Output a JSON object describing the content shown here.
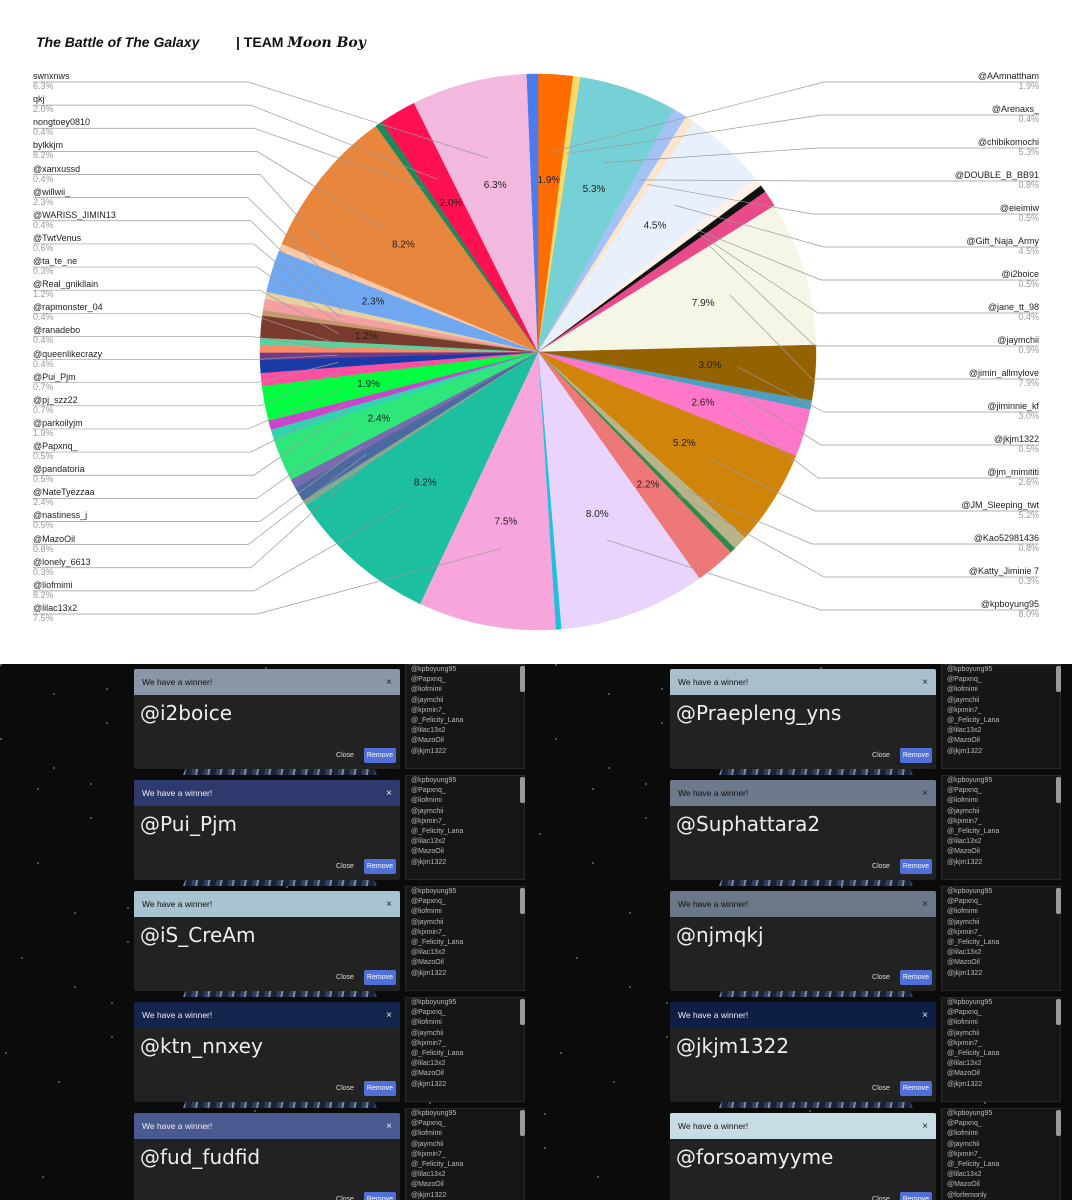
{
  "header": {
    "title": "The Battle of The Galaxy",
    "team_prefix": "| TEAM",
    "team_name": "Moon Boy"
  },
  "chart_data": {
    "type": "pie",
    "title": "",
    "slices": [
      {
        "label": "@AAmnattham",
        "value": 1.9,
        "color": "#ff6d01",
        "side": "right"
      },
      {
        "label": "@Arenaxs_",
        "value": 0.4,
        "color": "#ffd966",
        "side": "right"
      },
      {
        "label": "@chibikomochi",
        "value": 5.3,
        "color": "#76d1d6",
        "side": "right"
      },
      {
        "label": "@DOUBLE_B_BB91",
        "value": 0.8,
        "color": "#a4c2f4",
        "side": "right"
      },
      {
        "label": "@eieimiw",
        "value": 0.5,
        "color": "#fce5cd",
        "side": "right"
      },
      {
        "label": "@Gift_Naja_Army",
        "value": 4.5,
        "color": "#e8f0fe",
        "side": "right"
      },
      {
        "label": "@i2boice",
        "value": 0.5,
        "color": "#fff0e8",
        "side": "right"
      },
      {
        "label": "@jane_tt_98",
        "value": 0.4,
        "color": "#111111",
        "side": "right"
      },
      {
        "label": "@jaymchii",
        "value": 0.9,
        "color": "#e94b8a",
        "side": "right"
      },
      {
        "label": "@jimin_allmylove",
        "value": 7.9,
        "color": "#f6f6e6",
        "side": "right"
      },
      {
        "label": "@jiminnie_kf",
        "value": 3.0,
        "color": "#946200",
        "side": "right"
      },
      {
        "label": "@jkjm1322",
        "value": 0.5,
        "color": "#4c9fbf",
        "side": "right"
      },
      {
        "label": "@jm_mimititi",
        "value": 2.6,
        "color": "#ff77c8",
        "side": "right"
      },
      {
        "label": "@JM_Sleeping_twt",
        "value": 5.2,
        "color": "#d0850a",
        "side": "right"
      },
      {
        "label": "@Kao52981436",
        "value": 0.8,
        "color": "#b9b38a",
        "side": "right"
      },
      {
        "label": "@Katty_Jiminie 7",
        "value": 0.3,
        "color": "#2f8a4a",
        "side": "right"
      },
      {
        "label": "",
        "value": 2.2,
        "color": "#ee7777",
        "side": "none"
      },
      {
        "label": "@kpboyung95",
        "value": 8.0,
        "color": "#e8d4fc",
        "side": "right"
      },
      {
        "label": "",
        "value": 0.3,
        "color": "#22c0e0",
        "side": "none"
      },
      {
        "label": "@lilac13x2",
        "value": 7.5,
        "color": "#f7a6dd",
        "side": "left"
      },
      {
        "label": "@liofmimi",
        "value": 8.2,
        "color": "#1cbfa0",
        "side": "left"
      },
      {
        "label": "@lonely_6613",
        "value": 0.3,
        "color": "#86a890",
        "side": "left"
      },
      {
        "label": "@MazoOil",
        "value": 0.8,
        "color": "#4a6aa0",
        "side": "left"
      },
      {
        "label": "@nastiness_j",
        "value": 0.5,
        "color": "#7c6ab0",
        "side": "left"
      },
      {
        "label": "@NateTyezzaa",
        "value": 2.4,
        "color": "#2fe67a",
        "side": "left"
      },
      {
        "label": "@pandatoria",
        "value": 0.5,
        "color": "#2fd4b0",
        "side": "left"
      },
      {
        "label": "@Papxnq_",
        "value": 0.5,
        "color": "#cc44cc",
        "side": "left"
      },
      {
        "label": "@parkoilyjm",
        "value": 1.9,
        "color": "#00ff40",
        "side": "left"
      },
      {
        "label": "@pj_szz22",
        "value": 0.7,
        "color": "#ff4fa0",
        "side": "left"
      },
      {
        "label": "@Pui_Pjm",
        "value": 0.7,
        "color": "#1a3aa8",
        "side": "left"
      },
      {
        "label": "@queenlikecrazy",
        "value": 0.4,
        "color": "#6f3c8c",
        "side": "left"
      },
      {
        "label": "@ranadebo",
        "value": 0.4,
        "color": "#ff8a65",
        "side": "left"
      },
      {
        "label": "@rapmonster_04",
        "value": 0.4,
        "color": "#5bd1a0",
        "side": "left"
      },
      {
        "label": "@Real_gnikllain",
        "value": 1.2,
        "color": "#7a3b2e",
        "side": "left"
      },
      {
        "label": "@ta_te_ne",
        "value": 0.3,
        "color": "#c49a6c",
        "side": "left"
      },
      {
        "label": "@TwtVenus",
        "value": 0.6,
        "color": "#f4a0a0",
        "side": "left"
      },
      {
        "label": "@WARISS_JIMIN13",
        "value": 0.4,
        "color": "#e6cfa0",
        "side": "left"
      },
      {
        "label": "@willwii_",
        "value": 2.3,
        "color": "#6fa8f0",
        "side": "left"
      },
      {
        "label": "@xanxussd",
        "value": 0.4,
        "color": "#f9c9a9",
        "side": "left"
      },
      {
        "label": "bylkkjm",
        "value": 8.2,
        "color": "#e8863e",
        "side": "left"
      },
      {
        "label": "nongtoey0810",
        "value": 0.4,
        "color": "#1c8a5a",
        "side": "left"
      },
      {
        "label": "qkj",
        "value": 2.0,
        "color": "#ff1050",
        "side": "left"
      },
      {
        "label": "swnxnws",
        "value": 6.3,
        "color": "#f2b8de",
        "side": "left"
      },
      {
        "label": "",
        "value": 0.6,
        "color": "#4a7cf0",
        "side": "none"
      }
    ],
    "left_labels": [
      {
        "name": "swnxnws",
        "pct": "6.3%"
      },
      {
        "name": "qkj",
        "pct": "2.0%"
      },
      {
        "name": "nongtoey0810",
        "pct": "0.4%"
      },
      {
        "name": "bylkkjm",
        "pct": "8.2%"
      },
      {
        "name": "@xanxussd",
        "pct": "0.4%"
      },
      {
        "name": "@willwii_",
        "pct": "2.3%"
      },
      {
        "name": "@WARISS_JIMIN13",
        "pct": "0.4%"
      },
      {
        "name": "@TwtVenus",
        "pct": "0.6%"
      },
      {
        "name": "@ta_te_ne",
        "pct": "0.3%"
      },
      {
        "name": "@Real_gnikllain",
        "pct": "1.2%"
      },
      {
        "name": "@rapmonster_04",
        "pct": "0.4%"
      },
      {
        "name": "@ranadebo",
        "pct": "0.4%"
      },
      {
        "name": "@queenlikecrazy",
        "pct": "0.4%"
      },
      {
        "name": "@Pui_Pjm",
        "pct": "0.7%"
      },
      {
        "name": "@pj_szz22",
        "pct": "0.7%"
      },
      {
        "name": "@parkoilyjm",
        "pct": "1.9%"
      },
      {
        "name": "@Papxnq_",
        "pct": "0.5%"
      },
      {
        "name": "@pandatoria",
        "pct": "0.5%"
      },
      {
        "name": "@NateTyezzaa",
        "pct": "2.4%"
      },
      {
        "name": "@nastiness_j",
        "pct": "0.5%"
      },
      {
        "name": "@MazoOil",
        "pct": "0.8%"
      },
      {
        "name": "@lonely_6613",
        "pct": "0.3%"
      },
      {
        "name": "@liofmimi",
        "pct": "8.2%"
      },
      {
        "name": "@lilac13x2",
        "pct": "7.5%"
      }
    ],
    "right_labels": [
      {
        "name": "@AAmnattham",
        "pct": "1.9%"
      },
      {
        "name": "@Arenaxs_",
        "pct": "0.4%"
      },
      {
        "name": "@chibikomochi",
        "pct": "5.3%"
      },
      {
        "name": "@DOUBLE_B_BB91",
        "pct": "0.8%"
      },
      {
        "name": "@eieimiw",
        "pct": "0.5%"
      },
      {
        "name": "@Gift_Naja_Army",
        "pct": "4.5%"
      },
      {
        "name": "@i2boice",
        "pct": "0.5%"
      },
      {
        "name": "@jane_tt_98",
        "pct": "0.4%"
      },
      {
        "name": "@jaymchii",
        "pct": "0.9%"
      },
      {
        "name": "@jimin_allmylove",
        "pct": "7.9%"
      },
      {
        "name": "@jiminnie_kf",
        "pct": "3.0%"
      },
      {
        "name": "@jkjm1322",
        "pct": "0.5%"
      },
      {
        "name": "@jm_mimititi",
        "pct": "2.6%"
      },
      {
        "name": "@JM_Sleeping_twt",
        "pct": "5.2%"
      },
      {
        "name": "@Kao52981436",
        "pct": "0.8%"
      },
      {
        "name": "@Katty_Jiminie 7",
        "pct": "0.3%"
      },
      {
        "name": "@kpboyung95",
        "pct": "8.0%"
      }
    ]
  },
  "winner_dialog": {
    "title": "We have a winner!",
    "close_label": "Close",
    "remove_label": "Remove",
    "close_icon": "×"
  },
  "entry_list": [
    "@kpboyung95",
    "@Papxnq_",
    "@liofmimi",
    "@jaymchii",
    "@kjxmin7_",
    "@_Felicity_Lana",
    "@lilac13x2",
    "@MazoOil",
    "@jkjm1322"
  ],
  "entry_list_last": [
    "@kpboyung95",
    "@Papxnq_",
    "@liofmimi",
    "@jaymchii",
    "@kjxmin7_",
    "@_Felicity_Lana",
    "@lilac13x2",
    "@MazoOil",
    "@forfemonly"
  ],
  "winners": [
    {
      "name": "@i2boice",
      "header_color": "#8b96a6"
    },
    {
      "name": "@Praepleng_yns",
      "header_color": "#a9c0cc"
    },
    {
      "name": "@Pui_Pjm",
      "header_color": "#2e3a6e"
    },
    {
      "name": "@Suphattara2",
      "header_color": "#6c7a8c"
    },
    {
      "name": "@iS_CreAm",
      "header_color": "#a8c4d0"
    },
    {
      "name": "@njmqkj",
      "header_color": "#6a7888"
    },
    {
      "name": "@ktn_nnxey",
      "header_color": "#14244c"
    },
    {
      "name": "@jkjm1322",
      "header_color": "#0e1e44"
    },
    {
      "name": "@fud_fudfid",
      "header_color": "#4a5a90"
    },
    {
      "name": "@forsoamyyme",
      "header_color": "#c8dce6"
    }
  ]
}
